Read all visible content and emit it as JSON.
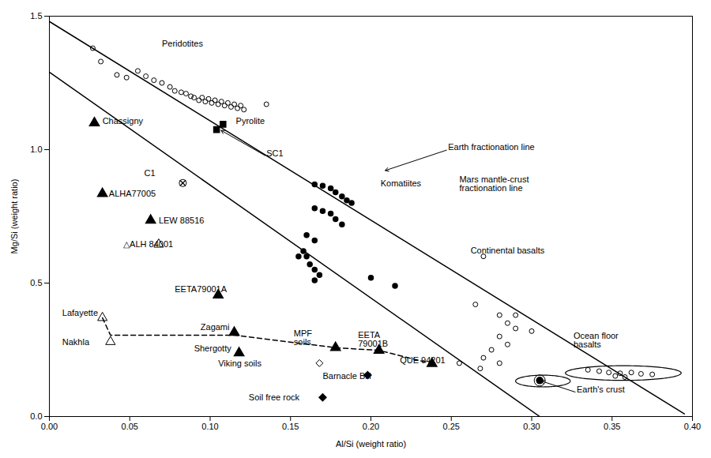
{
  "chart_data": {
    "type": "scatter",
    "xlabel": "Al/Si (weight ratio)",
    "ylabel": "Mg/Si (weight ratio)",
    "xlim": [
      0,
      0.4
    ],
    "ylim": [
      0,
      1.5
    ],
    "xticks": [
      {
        "value": 0,
        "label": "0.00"
      },
      0.05,
      {
        "value": 0.1,
        "label": "0.10"
      },
      0.15,
      {
        "value": 0.2,
        "label": "0.20"
      },
      0.25,
      {
        "value": 0.3,
        "label": "0.30"
      },
      0.35,
      {
        "value": 0.4,
        "label": "0.40"
      }
    ],
    "yticks": [
      {
        "value": 0,
        "label": "0.0"
      },
      0.5,
      {
        "value": 1.0,
        "label": "1.0"
      },
      1.5
    ],
    "grid": false,
    "series": [
      {
        "type": "line",
        "line_style": "solid",
        "values": [
          [
            0.0,
            1.48
          ],
          [
            0.395,
            0.01
          ]
        ]
      },
      {
        "type": "line",
        "line_style": "solid",
        "values": [
          [
            0.0,
            1.29
          ],
          [
            0.305,
            0.0
          ]
        ]
      },
      {
        "type": "line",
        "line_style": "dashed",
        "values": [
          [
            0.033,
            0.37
          ],
          [
            0.038,
            0.305
          ],
          [
            0.115,
            0.305
          ],
          [
            0.178,
            0.258
          ],
          [
            0.205,
            0.248
          ],
          [
            0.238,
            0.198
          ]
        ]
      },
      {
        "type": "scatter",
        "marker": "circle-open",
        "values": [
          [
            0.027,
            1.38
          ],
          [
            0.032,
            1.33
          ],
          [
            0.042,
            1.28
          ],
          [
            0.048,
            1.27
          ],
          [
            0.055,
            1.295
          ],
          [
            0.06,
            1.275
          ],
          [
            0.065,
            1.26
          ],
          [
            0.07,
            1.25
          ],
          [
            0.075,
            1.235
          ],
          [
            0.078,
            1.22
          ],
          [
            0.082,
            1.215
          ],
          [
            0.085,
            1.21
          ],
          [
            0.088,
            1.2
          ],
          [
            0.09,
            1.195
          ],
          [
            0.093,
            1.185
          ],
          [
            0.095,
            1.195
          ],
          [
            0.097,
            1.18
          ],
          [
            0.099,
            1.19
          ],
          [
            0.101,
            1.175
          ],
          [
            0.103,
            1.185
          ],
          [
            0.105,
            1.17
          ],
          [
            0.107,
            1.18
          ],
          [
            0.109,
            1.165
          ],
          [
            0.111,
            1.175
          ],
          [
            0.113,
            1.16
          ],
          [
            0.115,
            1.17
          ],
          [
            0.117,
            1.155
          ],
          [
            0.119,
            1.165
          ],
          [
            0.121,
            1.15
          ],
          [
            0.135,
            1.17
          ]
        ]
      },
      {
        "type": "scatter",
        "marker": "circle",
        "values": [
          [
            0.165,
            0.87
          ],
          [
            0.17,
            0.865
          ],
          [
            0.175,
            0.855
          ],
          [
            0.178,
            0.84
          ],
          [
            0.182,
            0.825
          ],
          [
            0.185,
            0.81
          ],
          [
            0.188,
            0.8
          ],
          [
            0.165,
            0.78
          ],
          [
            0.17,
            0.77
          ],
          [
            0.175,
            0.76
          ],
          [
            0.178,
            0.74
          ],
          [
            0.182,
            0.72
          ],
          [
            0.16,
            0.68
          ],
          [
            0.165,
            0.66
          ],
          [
            0.158,
            0.62
          ],
          [
            0.16,
            0.6
          ],
          [
            0.162,
            0.57
          ],
          [
            0.165,
            0.55
          ],
          [
            0.168,
            0.53
          ],
          [
            0.165,
            0.51
          ],
          [
            0.155,
            0.6
          ],
          [
            0.2,
            0.52
          ],
          [
            0.215,
            0.49
          ]
        ]
      },
      {
        "type": "scatter",
        "marker": "circle-open",
        "values": [
          [
            0.27,
            0.6
          ],
          [
            0.265,
            0.42
          ],
          [
            0.28,
            0.38
          ],
          [
            0.285,
            0.35
          ],
          [
            0.29,
            0.33
          ],
          [
            0.28,
            0.3
          ],
          [
            0.285,
            0.27
          ],
          [
            0.275,
            0.25
          ],
          [
            0.27,
            0.22
          ],
          [
            0.28,
            0.2
          ],
          [
            0.268,
            0.18
          ],
          [
            0.255,
            0.2
          ],
          [
            0.29,
            0.38
          ],
          [
            0.3,
            0.32
          ]
        ]
      },
      {
        "type": "scatter",
        "marker": "circle-open",
        "values": [
          [
            0.335,
            0.175
          ],
          [
            0.342,
            0.17
          ],
          [
            0.348,
            0.165
          ],
          [
            0.355,
            0.162
          ],
          [
            0.362,
            0.165
          ],
          [
            0.368,
            0.16
          ],
          [
            0.375,
            0.158
          ],
          [
            0.352,
            0.152
          ],
          [
            0.358,
            0.148
          ]
        ]
      },
      {
        "type": "scatter",
        "marker": "ringed-circle",
        "values": [
          [
            0.305,
            0.135
          ]
        ]
      },
      {
        "type": "scatter",
        "marker": "square",
        "values": [
          [
            0.108,
            1.095
          ],
          [
            0.104,
            1.075
          ]
        ]
      },
      {
        "type": "scatter",
        "marker": "circle-x",
        "values": [
          [
            0.083,
            0.875
          ]
        ]
      },
      {
        "type": "scatter",
        "marker": "triangle",
        "values": [
          [
            0.028,
            1.1
          ]
        ]
      },
      {
        "type": "scatter",
        "marker": "triangle",
        "values": [
          [
            0.033,
            0.835
          ],
          [
            0.063,
            0.735
          ],
          [
            0.105,
            0.455
          ],
          [
            0.115,
            0.315
          ],
          [
            0.118,
            0.238
          ],
          [
            0.178,
            0.258
          ],
          [
            0.205,
            0.248
          ],
          [
            0.238,
            0.198
          ]
        ]
      },
      {
        "type": "scatter",
        "marker": "triangle-open",
        "values": [
          [
            0.068,
            0.645
          ],
          [
            0.033,
            0.37
          ],
          [
            0.038,
            0.28
          ]
        ]
      },
      {
        "type": "scatter",
        "marker": "diamond-open",
        "values": [
          [
            0.168,
            0.2
          ]
        ]
      },
      {
        "type": "scatter",
        "marker": "diamond",
        "values": [
          [
            0.198,
            0.155
          ]
        ]
      },
      {
        "type": "scatter",
        "marker": "diamond",
        "values": [
          [
            0.17,
            0.072
          ]
        ]
      },
      {
        "type": "ellipse",
        "center": [
          0.357,
          0.163
        ],
        "width": 0.072,
        "height": 0.055
      },
      {
        "type": "ellipse",
        "center": [
          0.307,
          0.133
        ],
        "width": 0.034,
        "height": 0.044
      }
    ],
    "annotations": [
      {
        "text": "Peridotites",
        "x": 0.07,
        "y": 1.385
      },
      {
        "text": "Chassigny",
        "x": 0.033,
        "y": 1.095
      },
      {
        "text": "Pyrolite",
        "x": 0.116,
        "y": 1.095
      },
      {
        "text": "SC1",
        "x": 0.135,
        "y": 0.975,
        "arrow_to": [
          0.106,
          1.075
        ]
      },
      {
        "text": "C1",
        "x": 0.059,
        "y": 0.9
      },
      {
        "text": "ALHA77005",
        "x": 0.037,
        "y": 0.824
      },
      {
        "text": "LEW 88516",
        "x": 0.068,
        "y": 0.722
      },
      {
        "text": "△ALH 84001",
        "x": 0.046,
        "y": 0.634
      },
      {
        "text": "EETA79001A",
        "x": 0.078,
        "y": 0.465
      },
      {
        "text": "Lafayette",
        "x": 0.008,
        "y": 0.378
      },
      {
        "text": "Nakhla",
        "x": 0.008,
        "y": 0.268
      },
      {
        "text": "Zagami",
        "x": 0.094,
        "y": 0.325
      },
      {
        "text": "Shergotty",
        "x": 0.09,
        "y": 0.245
      },
      {
        "text": "Viking soils",
        "x": 0.105,
        "y": 0.188
      },
      {
        "text": "MPF\nsoils",
        "x": 0.152,
        "y": 0.268
      },
      {
        "text": "EETA\n79001B",
        "x": 0.192,
        "y": 0.262
      },
      {
        "text": "QUE 94201",
        "x": 0.218,
        "y": 0.2
      },
      {
        "text": "Barnacle Bill",
        "x": 0.17,
        "y": 0.14
      },
      {
        "text": "Soil free rock",
        "x": 0.124,
        "y": 0.06
      },
      {
        "text": "Komatiites",
        "x": 0.206,
        "y": 0.862
      },
      {
        "text": "Continental basalts",
        "x": 0.262,
        "y": 0.612
      },
      {
        "text": "Ocean floor\nbasalts",
        "x": 0.326,
        "y": 0.258
      },
      {
        "text": "Earth fractionation line",
        "x": 0.248,
        "y": 1.0,
        "arrow_to": [
          0.208,
          0.92
        ]
      },
      {
        "text": "Mars mantle-crust\nfractionation line",
        "x": 0.255,
        "y": 0.845
      },
      {
        "text": "Earth's crust",
        "x": 0.328,
        "y": 0.09,
        "arrow_to": [
          0.305,
          0.135
        ]
      }
    ]
  }
}
